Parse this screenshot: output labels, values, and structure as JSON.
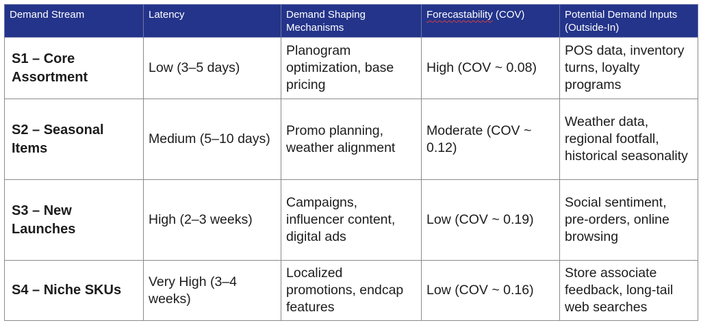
{
  "headers": {
    "stream": "Demand Stream",
    "latency": "Latency",
    "mechanisms": "Demand Shaping Mechanisms",
    "forecast_word": "Forecastability",
    "forecast_suffix": " (COV)",
    "inputs": "Potential Demand Inputs (Outside-In)"
  },
  "rows": [
    {
      "stream": "S1 – Core Assortment",
      "latency": "Low (3–5 days)",
      "mechanisms": "Planogram optimization, base pricing",
      "forecastability": "High (COV ~ 0.08)",
      "inputs": "POS data, inventory turns, loyalty programs"
    },
    {
      "stream": "S2 – Seasonal Items",
      "latency": "Medium (5–10 days)",
      "mechanisms": "Promo planning, weather alignment",
      "forecastability": "Moderate (COV ~ 0.12)",
      "inputs": "Weather data, regional footfall, historical seasonality"
    },
    {
      "stream": "S3 – New Launches",
      "latency": "High (2–3 weeks)",
      "mechanisms": "Campaigns, influencer content, digital ads",
      "forecastability": "Low (COV ~ 0.19)",
      "inputs": "Social sentiment, pre-orders, online browsing"
    },
    {
      "stream": "S4 – Niche SKUs",
      "latency": "Very High (3–4 weeks)",
      "mechanisms": "Localized promotions, endcap features",
      "forecastability": "Low (COV ~ 0.16)",
      "inputs": "Store associate feedback, long-tail web searches"
    }
  ],
  "colors": {
    "header_bg": "#24348a",
    "header_text": "#ffffff",
    "border": "#8a8a8a",
    "spellcheck_underline": "#d8403a"
  }
}
